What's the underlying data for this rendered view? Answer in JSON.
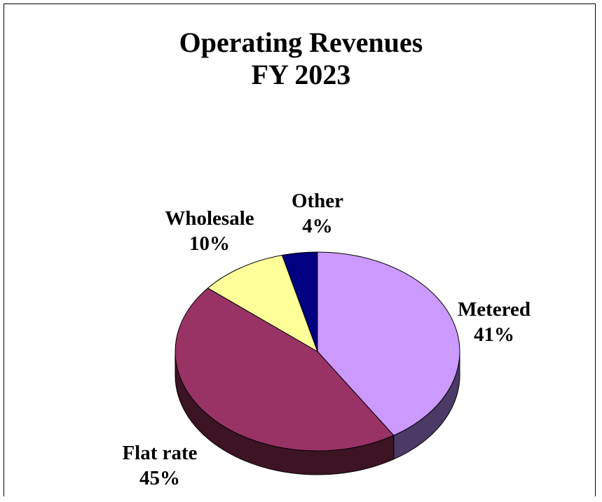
{
  "chart_data": {
    "type": "pie",
    "title": "Operating Revenues",
    "subtitle": "FY 2023",
    "slices": [
      {
        "label": "Metered",
        "value": 41,
        "display": "41%",
        "color": "#cc99ff",
        "side": "#4b3a66"
      },
      {
        "label": "Flat rate",
        "value": 45,
        "display": "45%",
        "color": "#993366",
        "side": "#3d1424"
      },
      {
        "label": "Wholesale",
        "value": 10,
        "display": "10%",
        "color": "#ffff99",
        "side": "#7a7a40"
      },
      {
        "label": "Other",
        "value": 4,
        "display": "4%",
        "color": "#000080",
        "side": "#000040"
      }
    ],
    "three_d": true,
    "legend": "none"
  }
}
